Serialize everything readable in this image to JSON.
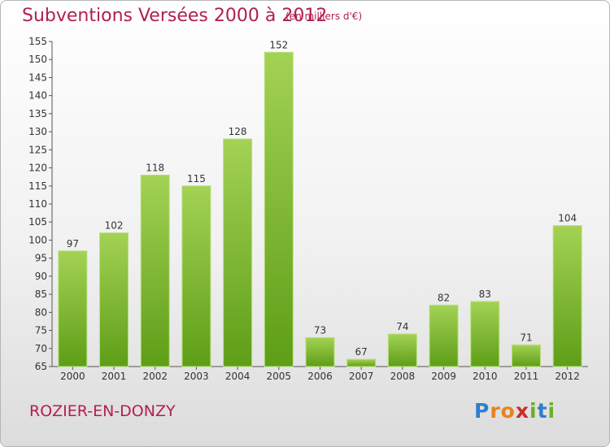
{
  "title": "Subventions Versées 2000 à 2012",
  "subtitle": "(en milliers d'€)",
  "commune": "ROZIER-EN-DONZY",
  "logo": {
    "text": "Proxiti",
    "letters": [
      {
        "ch": "P",
        "color": "#2e7fc9"
      },
      {
        "ch": "r",
        "color": "#e8821c"
      },
      {
        "ch": "o",
        "color": "#e8821c"
      },
      {
        "ch": "x",
        "color": "#cc2a2a"
      },
      {
        "ch": "i",
        "color": "#6ab023"
      },
      {
        "ch": "t",
        "color": "#2e7fc9"
      },
      {
        "ch": "i",
        "color": "#6ab023"
      }
    ]
  },
  "chart_data": {
    "type": "bar",
    "categories": [
      "2000",
      "2001",
      "2002",
      "2003",
      "2004",
      "2005",
      "2006",
      "2007",
      "2008",
      "2009",
      "2010",
      "2011",
      "2012"
    ],
    "values": [
      97,
      102,
      118,
      115,
      128,
      152,
      73,
      67,
      74,
      82,
      83,
      71,
      104
    ],
    "ylim": [
      65,
      155
    ],
    "yticks": [
      65,
      70,
      75,
      80,
      85,
      90,
      95,
      100,
      105,
      110,
      115,
      120,
      125,
      130,
      135,
      140,
      145,
      150,
      155
    ],
    "grid": false,
    "data_labels": true,
    "bar_colors": {
      "light": "#a3d254",
      "dark": "#5e9e17"
    }
  }
}
